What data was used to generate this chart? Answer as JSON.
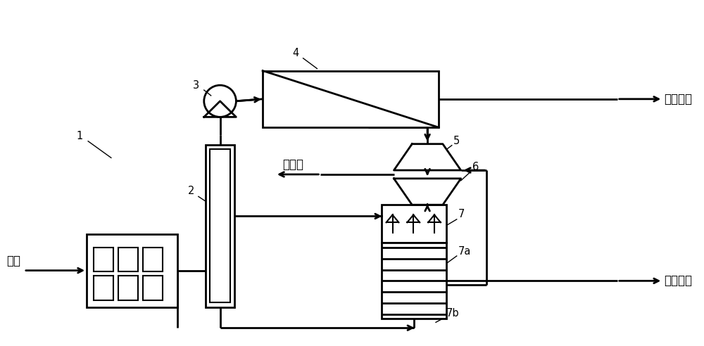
{
  "fig_width": 10.0,
  "fig_height": 4.92,
  "bg_color": "#ffffff",
  "line_color": "#000000",
  "labels": {
    "seawater": "海水",
    "domestic_water": "生活用水",
    "equipment_water": "设备用水",
    "brine": "浓盐水",
    "label1": "1",
    "label2": "2",
    "label3": "3",
    "label4": "4",
    "label5": "5",
    "label6": "6",
    "label7": "7",
    "label7a": "7a",
    "label7b": "7b"
  },
  "font_size": 12
}
